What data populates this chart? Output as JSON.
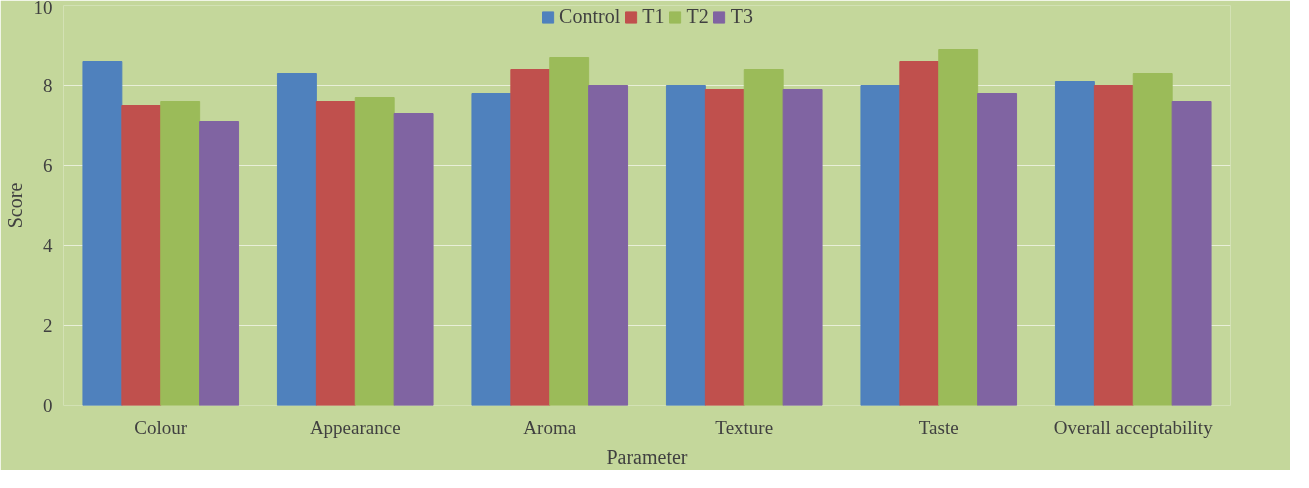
{
  "chart_data": {
    "type": "bar",
    "xlabel": "Parameter",
    "ylabel": "Score",
    "categories": [
      "Colour",
      "Appearance",
      "Aroma",
      "Texture",
      "Taste",
      "Overall acceptability"
    ],
    "series": [
      {
        "name": "Control",
        "color": "#4f81bd",
        "values": [
          8.6,
          8.3,
          7.8,
          8.0,
          8.0,
          8.1
        ]
      },
      {
        "name": "T1",
        "color": "#c0504d",
        "values": [
          7.5,
          7.6,
          8.4,
          7.9,
          8.6,
          8.0
        ]
      },
      {
        "name": "T2",
        "color": "#9bbb59",
        "values": [
          7.6,
          7.7,
          8.7,
          8.4,
          8.9,
          8.3
        ]
      },
      {
        "name": "T3",
        "color": "#8064a2",
        "values": [
          7.1,
          7.3,
          8.0,
          7.9,
          7.8,
          7.6
        ]
      }
    ],
    "ylim": [
      0,
      10
    ],
    "yticks": [
      0,
      2,
      4,
      6,
      8,
      10
    ],
    "grid": "y",
    "legend": "top"
  }
}
